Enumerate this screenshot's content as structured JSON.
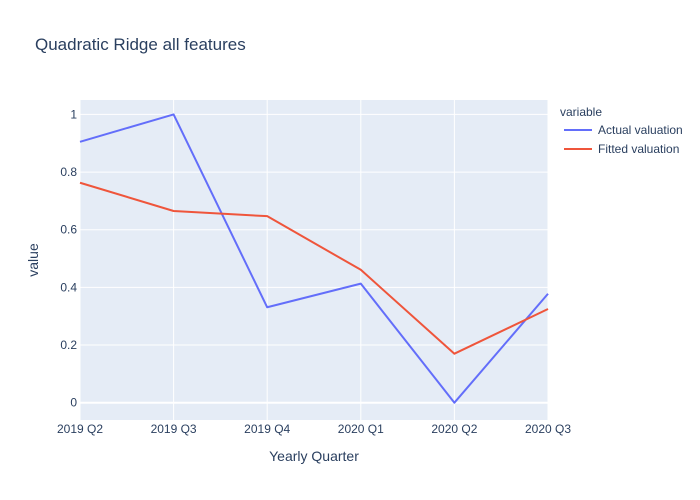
{
  "chart_data": {
    "type": "line",
    "title": "Quadratic Ridge all features",
    "xlabel": "Yearly Quarter",
    "ylabel": "value",
    "categories": [
      "2019 Q2",
      "2019 Q3",
      "2019 Q4",
      "2020 Q1",
      "2020 Q2",
      "2020 Q3"
    ],
    "ylim": [
      -0.06,
      1.05
    ],
    "yticks": [
      0,
      0.2,
      0.4,
      0.6,
      0.8,
      1
    ],
    "ytick_labels": [
      "0",
      "0.2",
      "0.4",
      "0.6",
      "0.8",
      "1"
    ],
    "grid": true,
    "legend": {
      "title": "variable",
      "placement": "top-right"
    },
    "series": [
      {
        "name": "Actual valuation",
        "color": "#636efa",
        "values": [
          0.905,
          1.0,
          0.331,
          0.413,
          0.0,
          0.378
        ]
      },
      {
        "name": "Fitted valuation",
        "color": "#ef553b",
        "values": [
          0.763,
          0.665,
          0.647,
          0.461,
          0.17,
          0.325
        ]
      }
    ],
    "plot_background": "#e5ecf6",
    "grid_color": "#ffffff",
    "text_color": "#2a3f5f"
  }
}
